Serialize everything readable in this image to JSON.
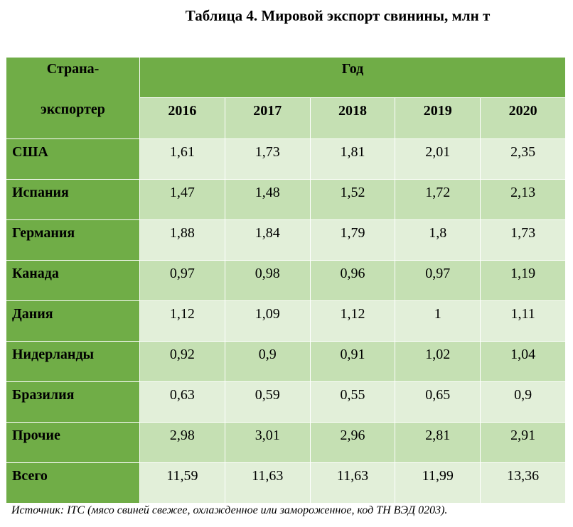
{
  "title": "Таблица 4. Мировой экспорт свинины, млн т",
  "table": {
    "corner": [
      "Страна-",
      "экспортер"
    ],
    "group_header": "Год",
    "years": [
      "2016",
      "2017",
      "2018",
      "2019",
      "2020"
    ],
    "rows": [
      [
        "США",
        "1,61",
        "1,73",
        "1,81",
        "2,01",
        "2,35"
      ],
      [
        "Испания",
        "1,47",
        "1,48",
        "1,52",
        "1,72",
        "2,13"
      ],
      [
        "Германия",
        "1,88",
        "1,84",
        "1,79",
        "1,8",
        "1,73"
      ],
      [
        "Канада",
        "0,97",
        "0,98",
        "0,96",
        "0,97",
        "1,19"
      ],
      [
        "Дания",
        "1,12",
        "1,09",
        "1,12",
        "1",
        "1,11"
      ],
      [
        "Нидерланды",
        "0,92",
        "0,9",
        "0,91",
        "1,02",
        "1,04"
      ],
      [
        "Бразилия",
        "0,63",
        "0,59",
        "0,55",
        "0,65",
        "0,9"
      ],
      [
        "Прочие",
        "2,98",
        "3,01",
        "2,96",
        "2,81",
        "2,91"
      ],
      [
        "Всего",
        "11,59",
        "11,63",
        "11,63",
        "11,99",
        "13,36"
      ]
    ]
  },
  "source": "Источник: ITC (мясо свиней свежее, охлажденное или замороженное, код ТН ВЭД 0203)."
}
